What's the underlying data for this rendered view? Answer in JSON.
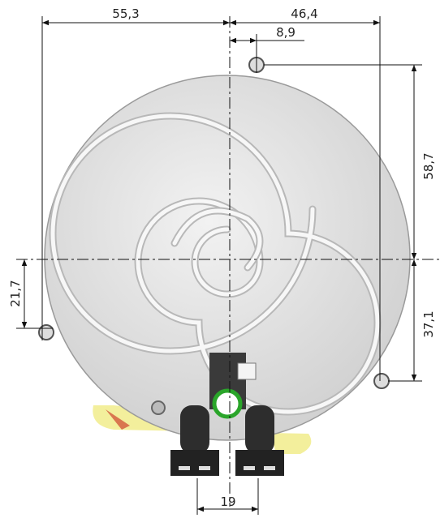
{
  "dimensions": [
    "55,3",
    "46,4",
    "8,9",
    "58,7",
    "21,7",
    "37,1",
    "19"
  ]
}
